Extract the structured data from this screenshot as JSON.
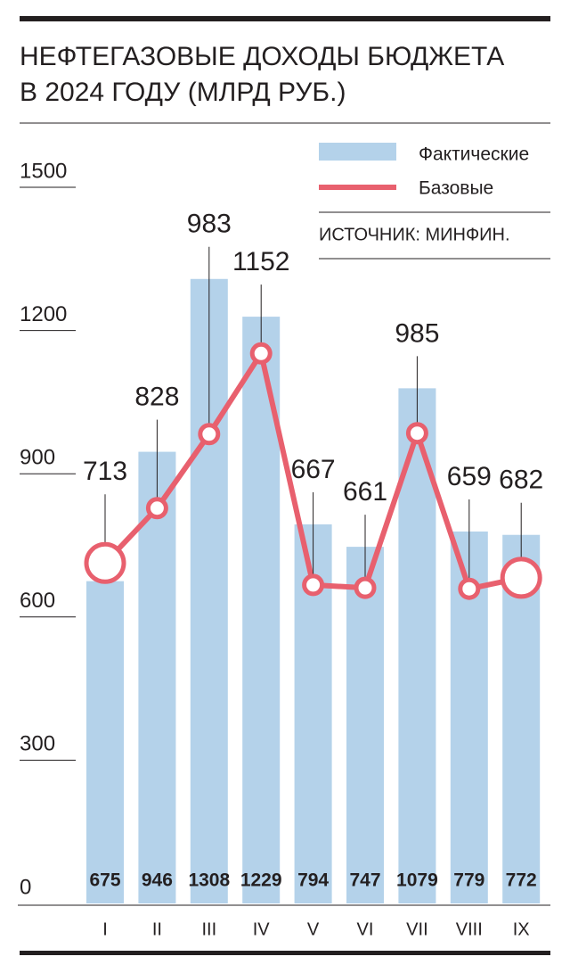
{
  "chart_data": {
    "type": "bar-line",
    "title": "НЕФТЕГАЗОВЫЕ ДОХОДЫ БЮДЖЕТА",
    "subtitle": "В 2024 ГОДУ (МЛРД РУБ.)",
    "source": "ИСТОЧНИК: МИНФИН.",
    "categories": [
      "I",
      "II",
      "III",
      "IV",
      "V",
      "VI",
      "VII",
      "VIII",
      "IX"
    ],
    "series": [
      {
        "name": "Фактические",
        "type": "bar",
        "color": "#b4d2ea",
        "values": [
          675,
          946,
          1308,
          1229,
          794,
          747,
          1079,
          779,
          772
        ]
      },
      {
        "name": "Базовые",
        "type": "line",
        "color": "#e8606e",
        "values": [
          713,
          828,
          983,
          1152,
          667,
          661,
          985,
          659,
          682
        ]
      }
    ],
    "ylim": [
      0,
      1500
    ],
    "yticks": [
      0,
      300,
      600,
      900,
      1200,
      1500
    ]
  }
}
